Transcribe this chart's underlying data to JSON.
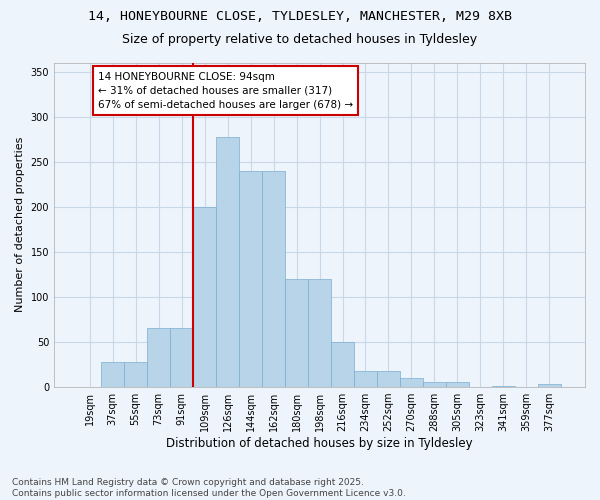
{
  "title1": "14, HONEYBOURNE CLOSE, TYLDESLEY, MANCHESTER, M29 8XB",
  "title2": "Size of property relative to detached houses in Tyldesley",
  "xlabel": "Distribution of detached houses by size in Tyldesley",
  "ylabel": "Number of detached properties",
  "categories": [
    "19sqm",
    "37sqm",
    "55sqm",
    "73sqm",
    "91sqm",
    "109sqm",
    "126sqm",
    "144sqm",
    "162sqm",
    "180sqm",
    "198sqm",
    "216sqm",
    "234sqm",
    "252sqm",
    "270sqm",
    "288sqm",
    "305sqm",
    "323sqm",
    "341sqm",
    "359sqm",
    "377sqm"
  ],
  "bar_values": [
    0,
    28,
    28,
    65,
    65,
    200,
    277,
    240,
    240,
    120,
    120,
    50,
    18,
    18,
    10,
    6,
    6,
    0,
    1,
    0,
    3
  ],
  "bar_color": "#b8d4e8",
  "bar_edge_color": "#7aaecf",
  "grid_color": "#c8d8e8",
  "bg_color": "#eef4fb",
  "vline_color": "#cc0000",
  "annotation_text": "14 HONEYBOURNE CLOSE: 94sqm\n← 31% of detached houses are smaller (317)\n67% of semi-detached houses are larger (678) →",
  "annotation_box_color": "#ffffff",
  "annotation_box_edge": "#cc0000",
  "ylim": [
    0,
    360
  ],
  "yticks": [
    0,
    50,
    100,
    150,
    200,
    250,
    300,
    350
  ],
  "footnote": "Contains HM Land Registry data © Crown copyright and database right 2025.\nContains public sector information licensed under the Open Government Licence v3.0.",
  "title_fontsize": 9.5,
  "subtitle_fontsize": 9,
  "xlabel_fontsize": 8.5,
  "ylabel_fontsize": 8,
  "tick_fontsize": 7,
  "footnote_fontsize": 6.5,
  "annot_fontsize": 7.5
}
